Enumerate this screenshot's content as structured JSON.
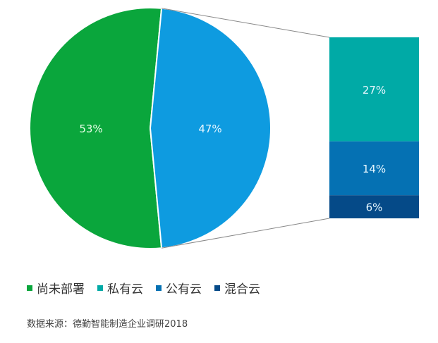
{
  "chart_data": {
    "type": "pie-of-bar",
    "pie": {
      "slices": [
        {
          "name": "尚未部署",
          "value": 53,
          "label": "53%",
          "color": "#0aa63c"
        },
        {
          "name": "",
          "value": 47,
          "label": "47%",
          "color": "#0e9be0"
        }
      ]
    },
    "bar": {
      "segments": [
        {
          "name": "私有云",
          "value": 27,
          "label": "27%",
          "color": "#00aaa6"
        },
        {
          "name": "公有云",
          "value": 14,
          "label": "14%",
          "color": "#0571b3"
        },
        {
          "name": "混合云",
          "value": 6,
          "label": "6%",
          "color": "#054a88"
        }
      ]
    },
    "legend": [
      {
        "label": "尚未部署",
        "color": "#0aa63c"
      },
      {
        "label": "私有云",
        "color": "#00aaa6"
      },
      {
        "label": "公有云",
        "color": "#0571b3"
      },
      {
        "label": "混合云",
        "color": "#054a88"
      }
    ],
    "legend_position": "bottom-left",
    "source": "数据来源：德勤智能制造企业调研2018"
  }
}
